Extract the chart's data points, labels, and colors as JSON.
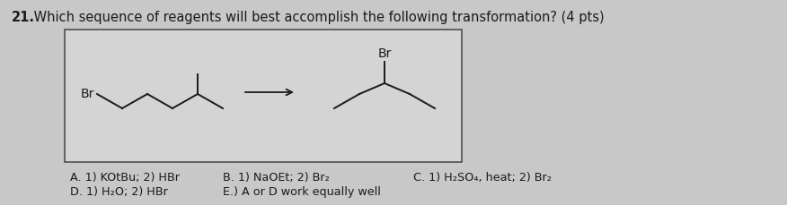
{
  "title_bold": "21.",
  "title_rest": " Which sequence of reagents will best accomplish the following transformation? (4 pts)",
  "title_fontsize": 10.5,
  "title_color": "#1a1a1a",
  "background_color": "#c8c8c8",
  "box_facecolor": "#d4d4d4",
  "box_edgecolor": "#444444",
  "answer_A": "A. 1) KOtBu; 2) HBr",
  "answer_B": "B. 1) NaOEt; 2) Br₂",
  "answer_C": "C. 1) H₂SO₄, heat; 2) Br₂",
  "answer_D": "D. 1) H₂O; 2) HBr",
  "answer_E": "E.) A or D work equally well",
  "answer_fontsize": 9.2,
  "text_color": "#1a1a1a",
  "line_color": "#1a1a1a",
  "reactant_Br_label": "Br",
  "product_Br_label": "Br"
}
